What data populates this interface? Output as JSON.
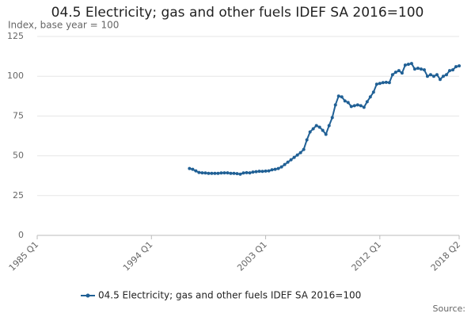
{
  "chart_data": {
    "type": "line",
    "title": "04.5 Electricity; gas and other fuels IDEF SA 2016=100",
    "subtitle": "Index, base year = 100",
    "source": "Source:",
    "categories": [
      "1985 Q1",
      null,
      null,
      null,
      null,
      null,
      null,
      null,
      null,
      null,
      null,
      null,
      null,
      null,
      null,
      null,
      null,
      null,
      null,
      null,
      null,
      null,
      null,
      null,
      null,
      null,
      null,
      null,
      null,
      null,
      null,
      null,
      null,
      null,
      null,
      null,
      "1994 Q1",
      null,
      null,
      null,
      null,
      null,
      null,
      null,
      null,
      null,
      null,
      null,
      null,
      null,
      null,
      null,
      null,
      null,
      null,
      null,
      null,
      null,
      null,
      null,
      null,
      null,
      null,
      null,
      null,
      null,
      null,
      null,
      null,
      null,
      null,
      null,
      "2003 Q1",
      null,
      null,
      null,
      null,
      null,
      null,
      null,
      null,
      null,
      null,
      null,
      null,
      null,
      null,
      null,
      null,
      null,
      null,
      null,
      null,
      null,
      null,
      null,
      null,
      null,
      null,
      null,
      null,
      null,
      null,
      null,
      null,
      null,
      null,
      null,
      "2012 Q1",
      null,
      null,
      null,
      null,
      null,
      null,
      null,
      null,
      null,
      null,
      null,
      null,
      null,
      null,
      null,
      null,
      null,
      null,
      null,
      null,
      null,
      null,
      null,
      null,
      "2018 Q2"
    ],
    "series": [
      {
        "name": "04.5 Electricity; gas and other fuels IDEF SA 2016=100",
        "color": "#206095",
        "values": [
          null,
          null,
          null,
          null,
          null,
          null,
          null,
          null,
          null,
          null,
          null,
          null,
          null,
          null,
          null,
          null,
          null,
          null,
          null,
          null,
          null,
          null,
          null,
          null,
          null,
          null,
          null,
          null,
          null,
          null,
          null,
          null,
          null,
          null,
          null,
          null,
          null,
          null,
          null,
          null,
          null,
          null,
          null,
          null,
          null,
          null,
          null,
          null,
          42,
          41.5,
          40.5,
          39.5,
          39.3,
          39.2,
          39,
          39,
          39,
          39,
          39.2,
          39.3,
          39.3,
          39,
          39,
          38.8,
          38.5,
          39.2,
          39.4,
          39.3,
          39.8,
          40,
          40.3,
          40.2,
          40.4,
          40.5,
          41.2,
          41.5,
          42,
          43,
          44.5,
          46,
          47.5,
          49,
          50.5,
          52,
          54,
          60,
          65,
          67,
          69,
          68,
          66,
          63.5,
          69,
          74,
          82,
          87.5,
          87,
          84.5,
          83.5,
          81,
          81.5,
          82,
          81.5,
          80.5,
          84,
          87,
          90,
          95,
          95.5,
          96,
          96.2,
          96,
          101,
          102.5,
          103.5,
          102,
          107,
          107.5,
          108,
          104.5,
          105,
          104.5,
          104,
          100,
          101,
          100,
          101,
          98,
          100,
          101,
          103.5,
          104,
          106,
          106.5
        ]
      }
    ],
    "ylim": [
      0,
      125
    ],
    "yticks": [
      0,
      25,
      50,
      75,
      100,
      125
    ],
    "grid": true
  }
}
